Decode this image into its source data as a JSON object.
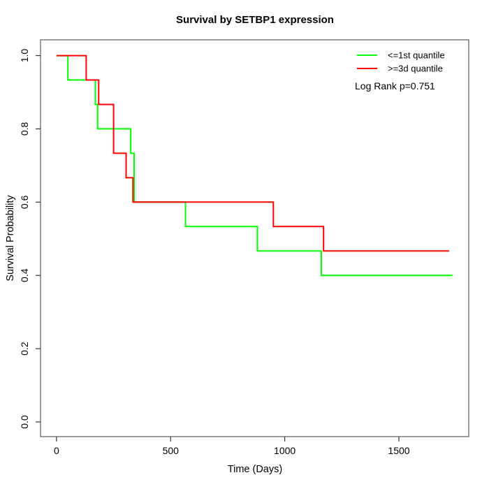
{
  "chart_data": {
    "type": "line",
    "subtype": "kaplan-meier-step",
    "title": "Survival by SETBP1 expression",
    "xlabel": "Time (Days)",
    "ylabel": "Survival Probability",
    "x_ticks": {
      "values": [
        0,
        500,
        1000,
        1500
      ],
      "labels": [
        "0",
        "500",
        "1000",
        "1500"
      ]
    },
    "y_ticks": {
      "values": [
        0.0,
        0.2,
        0.4,
        0.6,
        0.8,
        1.0
      ],
      "labels": [
        "0.0",
        "0.2",
        "0.4",
        "0.6",
        "0.8",
        "1.0"
      ]
    },
    "xlim": [
      -70,
      1806
    ],
    "ylim": [
      -0.04,
      1.043
    ],
    "grid": false,
    "legend_position": "top-right",
    "annotation": "Log Rank p=0.751",
    "series": [
      {
        "name": "<=1st quantile",
        "color": "#00ff00",
        "points": [
          [
            0,
            1.0
          ],
          [
            50,
            0.9333
          ],
          [
            170,
            0.8667
          ],
          [
            180,
            0.8
          ],
          [
            325,
            0.7333
          ],
          [
            340,
            0.6
          ],
          [
            565,
            0.5333
          ],
          [
            880,
            0.4667
          ],
          [
            1160,
            0.4
          ],
          [
            1735,
            0.4
          ]
        ]
      },
      {
        "name": ">=3d quantile",
        "color": "#ff0000",
        "points": [
          [
            0,
            1.0
          ],
          [
            130,
            0.9333
          ],
          [
            185,
            0.8667
          ],
          [
            250,
            0.7333
          ],
          [
            305,
            0.6667
          ],
          [
            335,
            0.6
          ],
          [
            950,
            0.5333
          ],
          [
            1170,
            0.4667
          ],
          [
            1720,
            0.4667
          ]
        ]
      }
    ]
  }
}
